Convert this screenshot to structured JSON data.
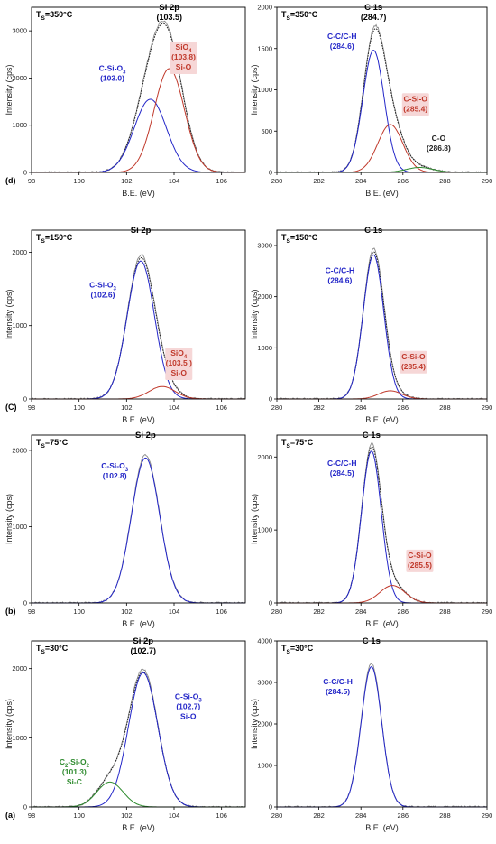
{
  "colors": {
    "fit": "#2326c8",
    "peak_red": "#c0392b",
    "peak_green": "#2e8b2e",
    "raw": "#8a8a8a",
    "envelope": "#222222",
    "label_box": "#f6d7d7"
  },
  "chart_data": [
    {
      "id": "d-si",
      "type": "line",
      "row_label": "(d)",
      "ts_label": "T",
      "ts_sub": "S",
      "ts_value": "=350°C",
      "title": "Si 2p",
      "title_value": "(103.5)",
      "xlabel": "B.E. (eV)",
      "ylabel": "Intensity (cps)",
      "xlim": [
        98,
        107
      ],
      "ylim": [
        0,
        3500
      ],
      "xticks": [
        98,
        100,
        102,
        104,
        106
      ],
      "yticks": [
        0,
        1000,
        2000,
        3000
      ],
      "peaks": [
        {
          "center": 103.0,
          "height": 1550,
          "fwhm": 1.6,
          "color": "fit"
        },
        {
          "center": 103.8,
          "height": 2200,
          "fwhm": 1.5,
          "color": "peak_red"
        }
      ],
      "show_envelope": true,
      "annotations": [
        {
          "lines": [
            "C-Si-O",
            "(103.0)"
          ],
          "sub": "3",
          "color": "fit",
          "x": 101.4,
          "y": 2150,
          "box": false
        },
        {
          "lines": [
            "SiO",
            "(103.8)",
            "Si-O"
          ],
          "sub": "4",
          "color": "peak_red",
          "x": 104.4,
          "y": 2600,
          "box": true
        }
      ]
    },
    {
      "id": "d-c",
      "type": "line",
      "ts_label": "T",
      "ts_sub": "S",
      "ts_value": "=350°C",
      "title": "C 1s",
      "title_value": "(284.7)",
      "xlabel": "B.E. (eV)",
      "ylabel": "Intensity (cps)",
      "xlim": [
        280,
        290
      ],
      "ylim": [
        0,
        2000
      ],
      "xticks": [
        280,
        282,
        284,
        286,
        288,
        290
      ],
      "yticks": [
        0,
        500,
        1000,
        1500,
        2000
      ],
      "peaks": [
        {
          "center": 284.6,
          "height": 1480,
          "fwhm": 1.2,
          "color": "fit"
        },
        {
          "center": 285.4,
          "height": 580,
          "fwhm": 1.4,
          "color": "peak_red"
        },
        {
          "center": 286.8,
          "height": 60,
          "fwhm": 1.5,
          "color": "peak_green"
        }
      ],
      "show_envelope": true,
      "annotations": [
        {
          "lines": [
            "C-C/C-H",
            "(284.6)"
          ],
          "color": "fit",
          "x": 283.1,
          "y": 1620,
          "box": false
        },
        {
          "lines": [
            "C-Si-O",
            "(285.4)"
          ],
          "color": "peak_red",
          "x": 286.6,
          "y": 860,
          "box": true
        },
        {
          "lines": [
            "C-O",
            "(286.8)"
          ],
          "color": "envelope",
          "x": 287.7,
          "y": 380,
          "box": false
        }
      ]
    },
    {
      "id": "c-si",
      "type": "line",
      "row_label": "(C)",
      "ts_label": "T",
      "ts_sub": "S",
      "ts_value": "=150°C",
      "title": "Si 2p",
      "title_value": "",
      "xlabel": "B.E. (eV)",
      "ylabel": "Intensity (cps)",
      "xlim": [
        98,
        107
      ],
      "ylim": [
        0,
        2300
      ],
      "xticks": [
        98,
        100,
        102,
        104,
        106
      ],
      "yticks": [
        0,
        1000,
        2000
      ],
      "peaks": [
        {
          "center": 102.6,
          "height": 1880,
          "fwhm": 1.35,
          "color": "fit"
        },
        {
          "center": 103.5,
          "height": 170,
          "fwhm": 1.3,
          "color": "peak_red"
        }
      ],
      "show_envelope": true,
      "annotations": [
        {
          "lines": [
            "C-Si-O",
            "(102.6)"
          ],
          "sub": "3",
          "color": "fit",
          "x": 101.0,
          "y": 1520,
          "box": false
        },
        {
          "lines": [
            "SiO",
            "(103.5 )",
            "Si-O"
          ],
          "sub": "4",
          "color": "peak_red",
          "x": 104.2,
          "y": 590,
          "box": true
        }
      ]
    },
    {
      "id": "c-c",
      "type": "line",
      "ts_label": "T",
      "ts_sub": "S",
      "ts_value": "=150°C",
      "title": "C 1s",
      "title_value": "",
      "xlabel": "B.E. (eV)",
      "ylabel": "Intensity (cps)",
      "xlim": [
        280,
        290
      ],
      "ylim": [
        0,
        3300
      ],
      "xticks": [
        280,
        282,
        284,
        286,
        288,
        290
      ],
      "yticks": [
        0,
        1000,
        2000,
        3000
      ],
      "peaks": [
        {
          "center": 284.6,
          "height": 2820,
          "fwhm": 1.15,
          "color": "fit"
        },
        {
          "center": 285.4,
          "height": 160,
          "fwhm": 1.3,
          "color": "peak_red"
        }
      ],
      "show_envelope": true,
      "annotations": [
        {
          "lines": [
            "C-C/C-H",
            "(284.6)"
          ],
          "color": "fit",
          "x": 283.0,
          "y": 2460,
          "box": false
        },
        {
          "lines": [
            "C-Si-O",
            "(285.4)"
          ],
          "color": "peak_red",
          "x": 286.5,
          "y": 780,
          "box": true
        }
      ]
    },
    {
      "id": "b-si",
      "type": "line",
      "row_label": "(b)",
      "ts_label": "T",
      "ts_sub": "S",
      "ts_value": "=75°C",
      "title": "Si 2p",
      "title_value": "",
      "xlabel": "B.E. (eV)",
      "ylabel": "Intensity (cps)",
      "xlim": [
        98,
        107
      ],
      "ylim": [
        0,
        2200
      ],
      "xticks": [
        98,
        100,
        102,
        104,
        106
      ],
      "yticks": [
        0,
        1000,
        2000
      ],
      "peaks": [
        {
          "center": 102.8,
          "height": 1900,
          "fwhm": 1.4,
          "color": "fit"
        }
      ],
      "show_envelope": false,
      "annotations": [
        {
          "lines": [
            "C-Si-O",
            "(102.8)"
          ],
          "sub": "3",
          "color": "fit",
          "x": 101.5,
          "y": 1760,
          "box": false
        }
      ]
    },
    {
      "id": "b-c",
      "type": "line",
      "ts_label": "T",
      "ts_sub": "S",
      "ts_value": "=75°C",
      "title": "C 1s",
      "title_value": "",
      "xlabel": "B.E. (eV)",
      "ylabel": "Intensity (cps)",
      "xlim": [
        280,
        290
      ],
      "ylim": [
        0,
        2300
      ],
      "xticks": [
        280,
        282,
        284,
        286,
        288,
        290
      ],
      "yticks": [
        0,
        1000,
        2000
      ],
      "peaks": [
        {
          "center": 284.5,
          "height": 2080,
          "fwhm": 1.1,
          "color": "fit"
        },
        {
          "center": 285.5,
          "height": 240,
          "fwhm": 1.4,
          "color": "peak_red"
        }
      ],
      "show_envelope": true,
      "annotations": [
        {
          "lines": [
            "C-C/C-H",
            "(284.5)"
          ],
          "color": "fit",
          "x": 283.1,
          "y": 1880,
          "box": false
        },
        {
          "lines": [
            "C-Si-O",
            "(285.5)"
          ],
          "color": "peak_red",
          "x": 286.8,
          "y": 620,
          "box": true
        }
      ]
    },
    {
      "id": "a-si",
      "type": "line",
      "row_label": "(a)",
      "ts_label": "T",
      "ts_sub": "S",
      "ts_value": "=30°C",
      "title": "Si 2p",
      "title_value": "(102.7)",
      "xlabel": "B.E. (eV)",
      "ylabel": "Intensity (cps)",
      "xlim": [
        98,
        107
      ],
      "ylim": [
        0,
        2400
      ],
      "xticks": [
        98,
        100,
        102,
        104,
        106
      ],
      "yticks": [
        0,
        1000,
        2000
      ],
      "peaks": [
        {
          "center": 102.7,
          "height": 1940,
          "fwhm": 1.45,
          "color": "fit"
        },
        {
          "center": 101.3,
          "height": 360,
          "fwhm": 1.3,
          "color": "peak_green"
        }
      ],
      "show_envelope": true,
      "annotations": [
        {
          "lines": [
            "C-Si-O",
            "(102.7)",
            "Si-O"
          ],
          "sub": "3",
          "color": "fit",
          "x": 104.6,
          "y": 1560,
          "box": false
        },
        {
          "lines": [
            "C -Si-O",
            "(101.3)",
            "Si-C"
          ],
          "sub": "2",
          "sub2": "2",
          "color": "peak_green",
          "x": 99.8,
          "y": 610,
          "box": false
        }
      ]
    },
    {
      "id": "a-c",
      "type": "line",
      "ts_label": "T",
      "ts_sub": "S",
      "ts_value": "=30°C",
      "title": "C 1s",
      "title_value": "",
      "xlabel": "B.E. (eV)",
      "ylabel": "Intensity (cps)",
      "xlim": [
        280,
        290
      ],
      "ylim": [
        0,
        4000
      ],
      "xticks": [
        280,
        282,
        284,
        286,
        288,
        290
      ],
      "yticks": [
        0,
        1000,
        2000,
        3000,
        4000
      ],
      "peaks": [
        {
          "center": 284.5,
          "height": 3380,
          "fwhm": 1.15,
          "color": "fit"
        }
      ],
      "show_envelope": false,
      "annotations": [
        {
          "lines": [
            "C-C/C-H",
            "(284.5)"
          ],
          "color": "fit",
          "x": 282.9,
          "y": 2960,
          "box": false
        }
      ]
    }
  ]
}
